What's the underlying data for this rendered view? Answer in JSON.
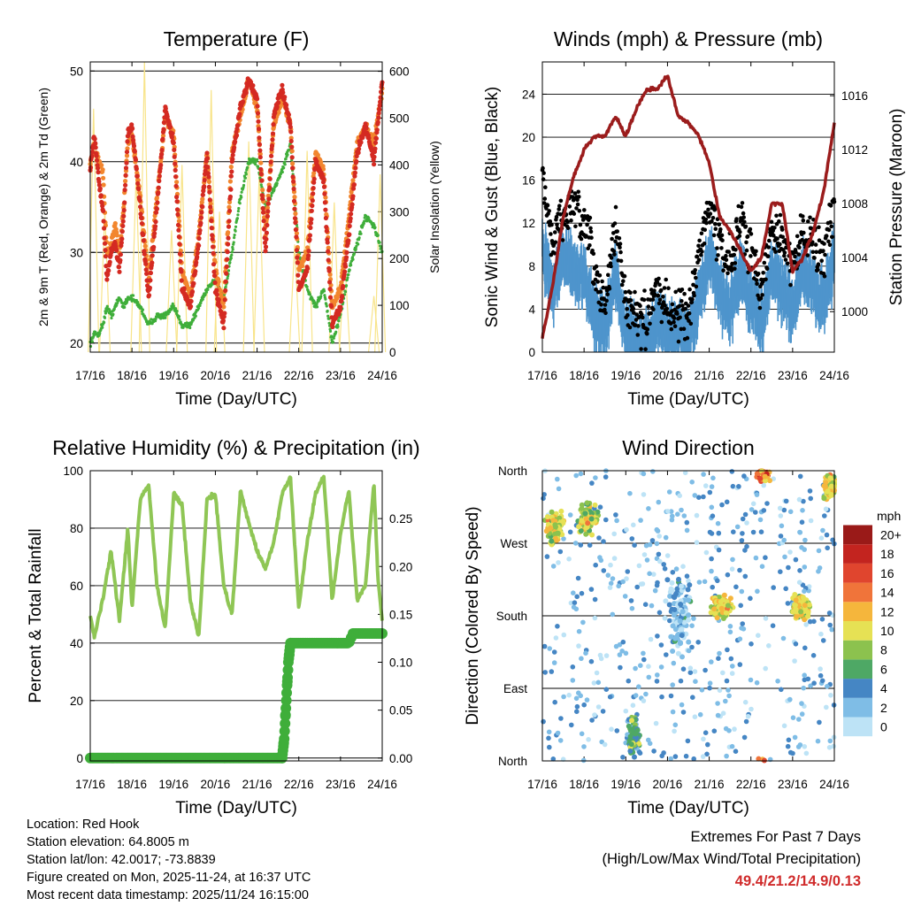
{
  "chart_data": [
    {
      "id": "temperature",
      "type": "line",
      "title": "Temperature (F)",
      "xlabel": "Time (Day/UTC)",
      "ylabel": "2m & 9m T (Red, Orange) & 2m Td (Green)",
      "ylabel_right": "Solar Insolation (Yellow)",
      "x_ticks": [
        "17/16",
        "18/16",
        "19/16",
        "20/16",
        "21/16",
        "22/16",
        "23/16",
        "24/16"
      ],
      "ylim": [
        19,
        51
      ],
      "y_ticks": [
        20,
        30,
        40,
        50
      ],
      "y2lim": [
        0,
        620
      ],
      "y2_ticks": [
        0,
        100,
        200,
        300,
        400,
        500,
        600
      ],
      "x": [
        0,
        0.1,
        0.2,
        0.3,
        0.4,
        0.5,
        0.6,
        0.7,
        0.8,
        0.9,
        1,
        1.2,
        1.4,
        1.6,
        1.8,
        2,
        2.2,
        2.4,
        2.6,
        2.8,
        3,
        3.2,
        3.4,
        3.6,
        3.8,
        4,
        4.2,
        4.4,
        4.6,
        4.8,
        5,
        5.2,
        5.4,
        5.6,
        5.8,
        6,
        6.2,
        6.4,
        6.6,
        6.8,
        7
      ],
      "series": [
        {
          "name": "2m T",
          "color": "#d42a22",
          "values": [
            39,
            43,
            38,
            35,
            27,
            30,
            31,
            28,
            34,
            43,
            44,
            35,
            25,
            35,
            46,
            42,
            26,
            24,
            31,
            41,
            26,
            22,
            40,
            46,
            49,
            47,
            30,
            45,
            48,
            44,
            26,
            28,
            40,
            38,
            22,
            24,
            32,
            41,
            44,
            40,
            49
          ]
        },
        {
          "name": "9m T",
          "color": "#f2862e",
          "values": [
            40,
            42,
            40,
            39,
            30,
            31,
            33,
            30,
            35,
            42,
            43,
            36,
            27,
            36,
            45,
            43,
            28,
            25,
            32,
            41,
            28,
            24,
            41,
            45,
            49,
            46,
            32,
            44,
            47,
            44,
            28,
            30,
            41,
            39,
            24,
            26,
            34,
            42,
            44,
            42,
            48
          ]
        },
        {
          "name": "2m Td",
          "color": "#3fae3a",
          "values": [
            20,
            21,
            21,
            22,
            24,
            23,
            24,
            25,
            24,
            25,
            25,
            24,
            22,
            23,
            23,
            24,
            22,
            22,
            24,
            26,
            27,
            25,
            30,
            36,
            40,
            40,
            35,
            37,
            39,
            42,
            30,
            26,
            24,
            26,
            20,
            23,
            28,
            31,
            34,
            33,
            30
          ]
        },
        {
          "name": "Solar Insolation",
          "color": "#f8e48a",
          "axis": "right",
          "peaks": [
            [
              0.08,
              520
            ],
            [
              0.35,
              300
            ],
            [
              1.1,
              380
            ],
            [
              1.3,
              620
            ],
            [
              1.95,
              260
            ],
            [
              2.2,
              400
            ],
            [
              2.9,
              560
            ],
            [
              3.1,
              300
            ],
            [
              3.8,
              450
            ],
            [
              4.05,
              380
            ],
            [
              4.9,
              230
            ],
            [
              5.2,
              430
            ],
            [
              5.85,
              320
            ],
            [
              6.1,
              200
            ],
            [
              6.8,
              120
            ],
            [
              6.95,
              380
            ]
          ]
        }
      ]
    },
    {
      "id": "winds",
      "type": "scatter",
      "title": "Winds (mph) & Pressure (mb)",
      "xlabel": "Time (Day/UTC)",
      "ylabel": "Sonic Wind & Gust (Blue, Black)",
      "ylabel_right": "Station Pressure (Maroon)",
      "x_ticks": [
        "17/16",
        "18/16",
        "19/16",
        "20/16",
        "21/16",
        "22/16",
        "23/16",
        "24/16"
      ],
      "ylim": [
        0,
        27
      ],
      "y_ticks": [
        0,
        4,
        8,
        12,
        16,
        20,
        24
      ],
      "y2lim": [
        997,
        1018.5
      ],
      "y2_ticks": [
        1000,
        1004,
        1008,
        1012,
        1016
      ],
      "x": [
        0,
        0.25,
        0.5,
        0.75,
        1,
        1.25,
        1.5,
        1.75,
        2,
        2.25,
        2.5,
        2.75,
        3,
        3.25,
        3.5,
        3.75,
        4,
        4.25,
        4.5,
        4.75,
        5,
        5.25,
        5.5,
        5.75,
        6,
        6.25,
        6.5,
        6.75,
        7
      ],
      "series": [
        {
          "name": "Sonic Wind",
          "color": "#4e95cc",
          "values": [
            10,
            6,
            9,
            8,
            7,
            4,
            2,
            8,
            2,
            1,
            1,
            3,
            2,
            2,
            1,
            5,
            9,
            6,
            4,
            8,
            5,
            3,
            8,
            6,
            4,
            8,
            6,
            5,
            9
          ]
        },
        {
          "name": "Gust",
          "color": "#000000",
          "values": [
            16,
            10,
            13,
            13,
            12,
            8,
            4,
            12,
            5,
            3,
            3,
            6,
            4,
            4,
            3,
            9,
            14,
            10,
            8,
            13,
            9,
            6,
            12,
            10,
            8,
            12,
            10,
            9,
            14
          ]
        },
        {
          "name": "Station Pressure",
          "color": "#9b1c1c",
          "axis": "right",
          "values": [
            998,
            1002,
            1007,
            1010,
            1012,
            1013,
            1013,
            1014.5,
            1013,
            1015,
            1016.5,
            1016.5,
            1017.5,
            1014.5,
            1014,
            1013,
            1011,
            1007,
            1006,
            1004.5,
            1003,
            1004,
            1008,
            1008,
            1003,
            1004,
            1006,
            1009,
            1014
          ]
        }
      ]
    },
    {
      "id": "humidity",
      "type": "line",
      "title": "Relative Humidity (%) & Precipitation (in)",
      "xlabel": "Time (Day/UTC)",
      "ylabel": "Percent & Total Rainfall",
      "x_ticks": [
        "17/16",
        "18/16",
        "19/16",
        "20/16",
        "21/16",
        "22/16",
        "23/16",
        "24/16"
      ],
      "ylim": [
        -1,
        100
      ],
      "y_ticks": [
        0,
        20,
        40,
        60,
        80,
        100
      ],
      "y2lim": [
        -0.003,
        0.3
      ],
      "y2_ticks": [
        "0.00",
        "0.05",
        "0.10",
        "0.15",
        "0.20",
        "0.25"
      ],
      "x": [
        0,
        0.1,
        0.3,
        0.5,
        0.7,
        0.9,
        1.0,
        1.2,
        1.4,
        1.6,
        1.8,
        2.0,
        2.2,
        2.4,
        2.6,
        2.8,
        3.0,
        3.2,
        3.4,
        3.6,
        3.8,
        4.0,
        4.2,
        4.4,
        4.6,
        4.8,
        5.0,
        5.2,
        5.4,
        5.6,
        5.8,
        6.0,
        6.2,
        6.4,
        6.6,
        6.8,
        6.9,
        7
      ],
      "series": [
        {
          "name": "Relative Humidity",
          "color": "#8fc655",
          "values": [
            50,
            42,
            55,
            72,
            48,
            80,
            52,
            90,
            95,
            60,
            45,
            92,
            88,
            55,
            42,
            90,
            92,
            60,
            50,
            93,
            82,
            72,
            66,
            75,
            92,
            98,
            52,
            75,
            92,
            98,
            55,
            78,
            93,
            55,
            60,
            96,
            62,
            48
          ]
        },
        {
          "name": "Total Rainfall (in)",
          "color": "#3fae3a",
          "axis": "right",
          "x": [
            0,
            4.6,
            4.65,
            4.7,
            4.75,
            4.8,
            5.0,
            5.6,
            5.8,
            6.0,
            6.2,
            6.3,
            6.5,
            7
          ],
          "values": [
            0,
            0,
            0.02,
            0.06,
            0.1,
            0.12,
            0.12,
            0.12,
            0.12,
            0.12,
            0.12,
            0.13,
            0.13,
            0.13
          ]
        }
      ]
    },
    {
      "id": "wind_direction",
      "type": "scatter",
      "title": "Wind Direction",
      "xlabel": "Time (Day/UTC)",
      "ylabel": "Direction (Colored By Speed)",
      "x_ticks": [
        "17/16",
        "18/16",
        "19/16",
        "20/16",
        "21/16",
        "22/16",
        "23/16",
        "24/16"
      ],
      "y_ticks": [
        "North",
        "East",
        "South",
        "West",
        "North"
      ],
      "colorbar_title": "mph",
      "colorbar_labels": [
        "0",
        "2",
        "4",
        "6",
        "8",
        "10",
        "12",
        "14",
        "16",
        "18",
        "20+"
      ],
      "colorbar_colors": [
        "#bde3f6",
        "#7fbde6",
        "#4586c4",
        "#4ea865",
        "#8cc24e",
        "#e6e154",
        "#f5b63c",
        "#f0743a",
        "#e0452e",
        "#c3241f",
        "#9a1a18"
      ],
      "clusters": [
        {
          "x": 0.3,
          "spread": 0.3,
          "dir": 290,
          "dspread": 25,
          "speed": 10
        },
        {
          "x": 1.1,
          "spread": 0.3,
          "dir": 300,
          "dspread": 25,
          "speed": 9
        },
        {
          "x": 2.2,
          "spread": 0.2,
          "dir": 30,
          "dspread": 30,
          "speed": 6
        },
        {
          "x": 3.3,
          "spread": 0.4,
          "dir": 180,
          "dspread": 60,
          "speed": 2
        },
        {
          "x": 4.3,
          "spread": 0.3,
          "dir": 190,
          "dspread": 20,
          "speed": 10
        },
        {
          "x": 5.3,
          "spread": 0.2,
          "dir": 355,
          "dspread": 10,
          "speed": 14
        },
        {
          "x": 6.2,
          "spread": 0.3,
          "dir": 190,
          "dspread": 20,
          "speed": 10
        },
        {
          "x": 6.9,
          "spread": 0.2,
          "dir": 340,
          "dspread": 20,
          "speed": 10
        }
      ]
    }
  ],
  "info": {
    "location": "Location: Red Hook",
    "elevation": "Station elevation: 64.8005 m",
    "latlon": "Station lat/lon: 42.0017; -73.8839",
    "created": "Figure created on Mon, 2025-11-24, at 16:37 UTC",
    "recent": "Most recent data timestamp: 2025/11/24 16:15:00"
  },
  "extremes": {
    "title": "Extremes For Past 7 Days",
    "subtitle": "(High/Low/Max Wind/Total Precipitation)",
    "values": "49.4/21.2/14.9/0.13"
  }
}
